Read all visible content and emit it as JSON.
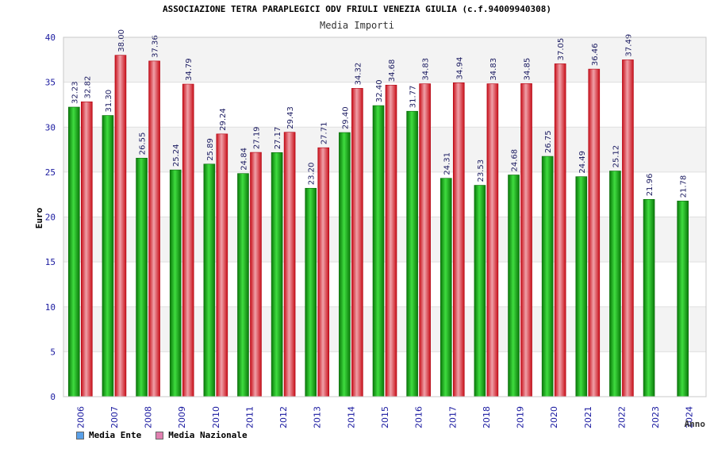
{
  "chart_data": {
    "type": "bar",
    "title": "ASSOCIAZIONE TETRA PARAPLEGICI ODV FRIULI VENEZIA GIULIA (c.f.94009940308)",
    "subtitle": "Media Importi",
    "xlabel": "Anno",
    "ylabel": "Euro",
    "ylim": [
      0,
      40
    ],
    "yticks": [
      0,
      5,
      10,
      15,
      20,
      25,
      30,
      35,
      40
    ],
    "categories": [
      "2006",
      "2007",
      "2008",
      "2009",
      "2010",
      "2011",
      "2012",
      "2013",
      "2014",
      "2015",
      "2016",
      "2017",
      "2018",
      "2019",
      "2020",
      "2021",
      "2022",
      "2023",
      "2024"
    ],
    "series": [
      {
        "name": "Media Ente",
        "color": "#1aa01a",
        "legend_color": "#5aa0e8",
        "values": [
          32.23,
          31.3,
          26.55,
          25.24,
          25.89,
          24.84,
          27.17,
          23.2,
          29.4,
          32.4,
          31.77,
          24.31,
          23.53,
          24.68,
          26.75,
          24.49,
          25.12,
          21.96,
          21.78
        ],
        "labels": [
          "32.23",
          "31.30",
          "26.55",
          "25.24",
          "25.89",
          "24.84",
          "27.17",
          "23.20",
          "29.40",
          "32.40",
          "31.77",
          "24.31",
          "23.53",
          "24.68",
          "26.75",
          "24.49",
          "25.12",
          "21.96",
          "21.78"
        ]
      },
      {
        "name": "Media Nazionale",
        "color": "#e8202a",
        "legend_color": "#e080b0",
        "values": [
          32.82,
          38.0,
          37.36,
          34.79,
          29.24,
          27.19,
          29.43,
          27.71,
          34.32,
          34.68,
          34.83,
          34.94,
          34.83,
          34.85,
          37.05,
          36.46,
          37.49,
          null,
          null
        ],
        "labels": [
          "32.82",
          "38.00",
          "37.36",
          "34.79",
          "29.24",
          "27.19",
          "29.43",
          "27.71",
          "34.32",
          "34.68",
          "34.83",
          "34.94",
          "34.83",
          "34.85",
          "37.05",
          "36.46",
          "37.49",
          "",
          ""
        ]
      }
    ],
    "grid": true,
    "legend_position": "bottom-left"
  }
}
